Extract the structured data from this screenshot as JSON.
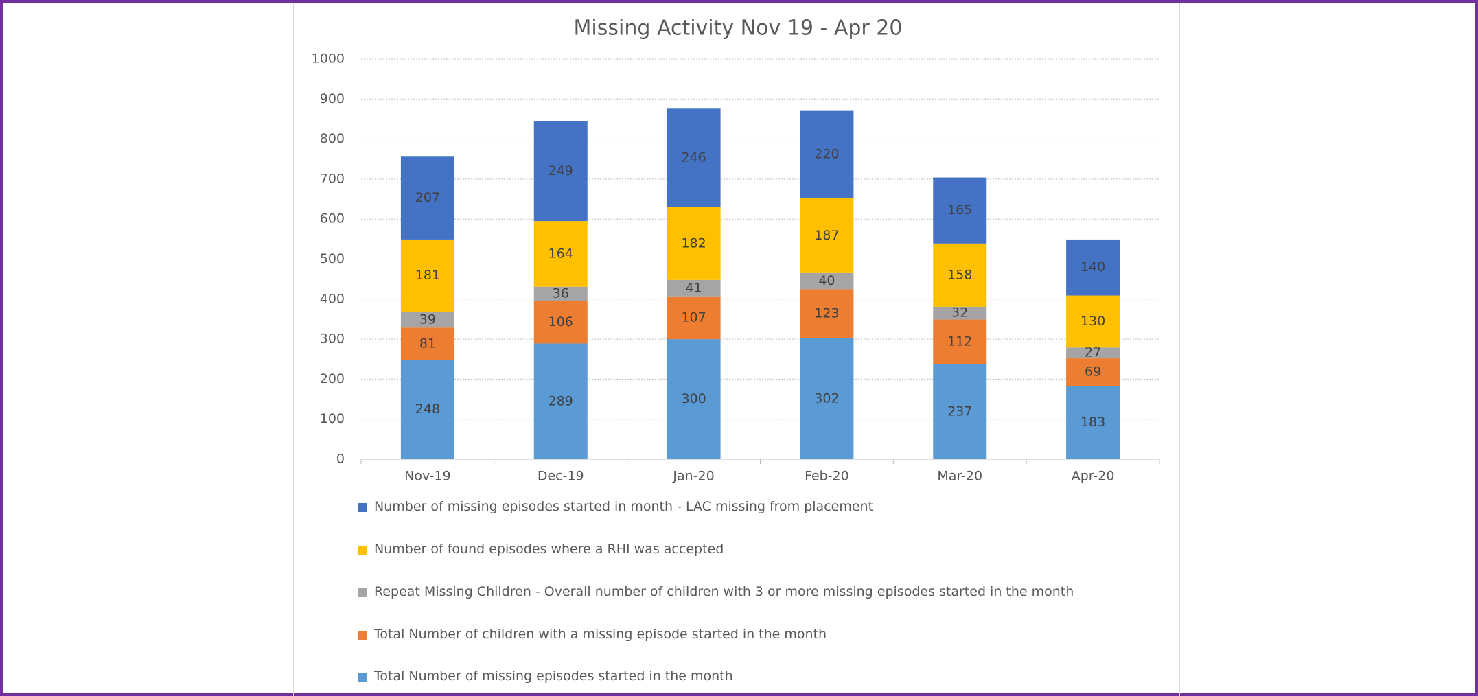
{
  "chart_data": {
    "type": "stacked_bar",
    "title": "Missing Activity Nov 19 - Apr 20",
    "categories": [
      "Nov-19",
      "Dec-19",
      "Jan-20",
      "Feb-20",
      "Mar-20",
      "Apr-20"
    ],
    "series": [
      {
        "name": "Total Number of missing episodes started in the month",
        "color": "#5b9bd5",
        "values": [
          248,
          289,
          300,
          302,
          237,
          183
        ]
      },
      {
        "name": "Total Number of children with a missing episode started in the month",
        "color": "#ed7d31",
        "values": [
          81,
          106,
          107,
          123,
          112,
          69
        ]
      },
      {
        "name": "Repeat Missing Children - Overall number of children with 3 or more missing episodes started in the month",
        "color": "#a5a5a5",
        "values": [
          39,
          36,
          41,
          40,
          32,
          27
        ]
      },
      {
        "name": "Number of found episodes where a  RHI  was accepted",
        "color": "#ffc000",
        "values": [
          181,
          164,
          182,
          187,
          158,
          130
        ]
      },
      {
        "name": "Number of missing episodes started in month - LAC missing from placement",
        "color": "#4472c4",
        "values": [
          207,
          249,
          246,
          220,
          165,
          140
        ]
      }
    ],
    "ylim": [
      0,
      1000
    ],
    "yticks": [
      0,
      100,
      200,
      300,
      400,
      500,
      600,
      700,
      800,
      900,
      1000
    ],
    "grid": true,
    "legend": "bottom"
  }
}
